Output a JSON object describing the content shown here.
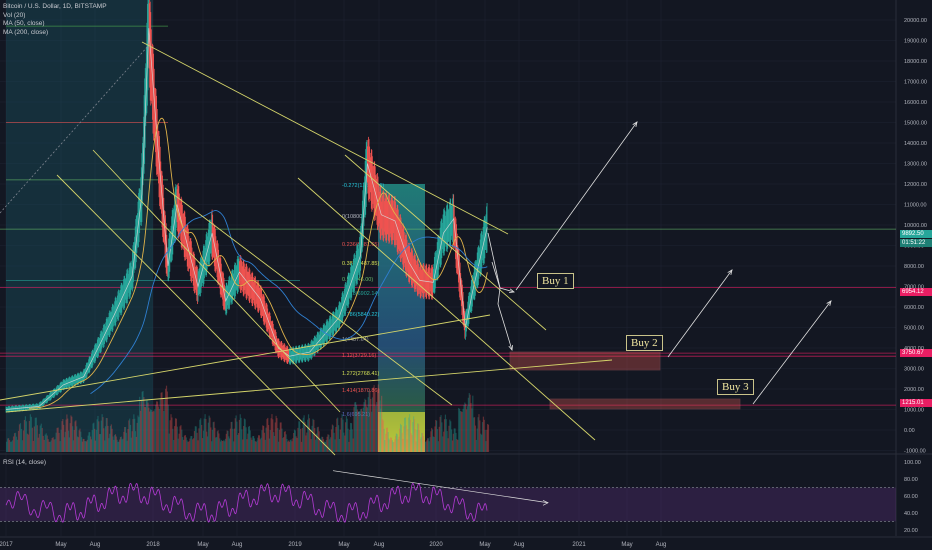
{
  "legend": {
    "symbol": "Bitcoin / U.S. Dollar, 1D, BITSTAMP",
    "vol": "Vol (20)",
    "ma50": "MA (50, close)",
    "ma200": "MA (200, close)"
  },
  "rsi_legend": "RSI (14, close)",
  "annotations": {
    "buy1": "Buy 1",
    "buy2": "Buy 2",
    "buy3": "Buy 3"
  },
  "price_tags": {
    "current": "9892.50",
    "countdown": "01:51:22",
    "buy1_level": "6954.12",
    "buy2_level": "3750.67",
    "buy3_level": "1215.01"
  },
  "colors": {
    "background": "#131722",
    "grid": "#1f2433",
    "up_candle": "#26a69a",
    "down_candle": "#ef5350",
    "trendline": "#d4d46a",
    "ma50": "#e0b34a",
    "ma200": "#2f7fd0",
    "rsi": "#b53bd6",
    "buy_zone": "#d9534f"
  },
  "fib_levels": [
    {
      "label": "-0.272(12527.66)",
      "color": "#26c6da"
    },
    {
      "label": "0(10800)",
      "color": "#b2b5be"
    },
    {
      "label": "0.236(9381.65)",
      "color": "#ef5350"
    },
    {
      "label": "0.382(8487.85)",
      "color": "#d4e157"
    },
    {
      "label": "0.5(7846.00)",
      "color": "#66bb6a"
    },
    {
      "label": "0.618(6902.14)",
      "color": "#26a69a"
    },
    {
      "label": "0.786(5840.22)",
      "color": "#26c6da"
    },
    {
      "label": "1(4487.64)",
      "color": "#9e9e9e"
    },
    {
      "label": "1.12(3729.16)",
      "color": "#ef5350"
    },
    {
      "label": "1.272(2768.41)",
      "color": "#d4e157"
    },
    {
      "label": "1.414(1870.86)",
      "color": "#ef5350"
    },
    {
      "label": "1.6(695.21)",
      "color": "#5c6bc0"
    }
  ],
  "chart_data": [
    {
      "type": "line",
      "title": "Bitcoin / U.S. Dollar, 1D, BITSTAMP",
      "x": [
        "2017",
        "May",
        "Aug",
        "2018",
        "May",
        "Aug",
        "2019",
        "May",
        "Aug",
        "2020",
        "May",
        "Aug",
        "2021",
        "May",
        "Aug"
      ],
      "y_ticks": [
        "21000.00",
        "20000.00",
        "19000.00",
        "18000.00",
        "17000.00",
        "16000.00",
        "15000.00",
        "14000.00",
        "13000.00",
        "12000.00",
        "11000.00",
        "10000.00",
        "9000.00",
        "8000.00",
        "7000.00",
        "6000.00",
        "5000.00",
        "4000.00",
        "3000.00",
        "2000.00",
        "1000.00",
        "0.00",
        "-1000.00"
      ],
      "ylim": [
        -1500,
        21500
      ],
      "series": [
        {
          "values": [
            [
              2017.0,
              1000
            ],
            [
              2017.2,
              1150
            ],
            [
              2017.35,
              2200
            ],
            [
              2017.5,
              2600
            ],
            [
              2017.62,
              4200
            ],
            [
              2017.72,
              5600
            ],
            [
              2017.85,
              7500
            ],
            [
              2017.92,
              11500
            ],
            [
              2017.97,
              19600
            ],
            [
              2018.03,
              14000
            ],
            [
              2018.1,
              8000
            ],
            [
              2018.16,
              11000
            ],
            [
              2018.3,
              7000
            ],
            [
              2018.4,
              9600
            ],
            [
              2018.5,
              6300
            ],
            [
              2018.6,
              7700
            ],
            [
              2018.75,
              6400
            ],
            [
              2018.88,
              4000
            ],
            [
              2018.96,
              3600
            ],
            [
              2019.1,
              3800
            ],
            [
              2019.3,
              5500
            ],
            [
              2019.45,
              8500
            ],
            [
              2019.5,
              13000
            ],
            [
              2019.6,
              10500
            ],
            [
              2019.7,
              10200
            ],
            [
              2019.8,
              8200
            ],
            [
              2019.88,
              7300
            ],
            [
              2019.98,
              7200
            ],
            [
              2020.05,
              9600
            ],
            [
              2020.12,
              10300
            ],
            [
              2020.2,
              5000
            ],
            [
              2020.25,
              6800
            ],
            [
              2020.35,
              9892.5
            ]
          ]
        }
      ]
    },
    {
      "type": "line",
      "title": "RSI (14, close)",
      "y_ticks": [
        "100.00",
        "80.00",
        "60.00",
        "40.00",
        "20.00"
      ],
      "ylim": [
        15,
        105
      ]
    }
  ]
}
